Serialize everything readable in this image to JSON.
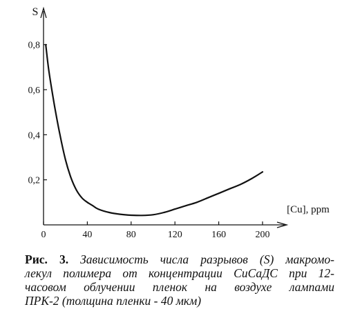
{
  "chart_data": {
    "type": "line",
    "ylabel": "S",
    "xlabel": "[Cu], ppm",
    "xlim": [
      0,
      212
    ],
    "ylim": [
      0,
      0.9
    ],
    "x_ticks": [
      0,
      40,
      80,
      120,
      160,
      200
    ],
    "x_tick_labels": [
      "0",
      "40",
      "80",
      "120",
      "160",
      "200"
    ],
    "y_ticks": [
      0.2,
      0.4,
      0.6,
      0.8
    ],
    "y_tick_labels": [
      "0,2",
      "0,4",
      "0,6",
      "0,8"
    ],
    "grid": false,
    "series": [
      {
        "x": [
          2,
          5,
          10,
          15,
          20,
          25,
          30,
          35,
          40,
          45,
          50,
          60,
          70,
          80,
          90,
          100,
          110,
          120,
          130,
          140,
          150,
          160,
          170,
          180,
          190,
          200
        ],
        "y": [
          0.8,
          0.68,
          0.53,
          0.4,
          0.29,
          0.21,
          0.155,
          0.12,
          0.1,
          0.085,
          0.07,
          0.055,
          0.047,
          0.043,
          0.042,
          0.045,
          0.055,
          0.07,
          0.085,
          0.1,
          0.12,
          0.14,
          0.16,
          0.18,
          0.205,
          0.235
        ]
      }
    ]
  },
  "caption": {
    "label": "Рис. 3.",
    "lines": [
      "Зависимость числа разрывов (S) макромо-",
      "лекул полимера от концентрации СиСаДС при 12-",
      "часовом облучении пленок на воздухе лампами",
      "ПРК-2 (толщина пленки - 40 мкм)"
    ]
  }
}
